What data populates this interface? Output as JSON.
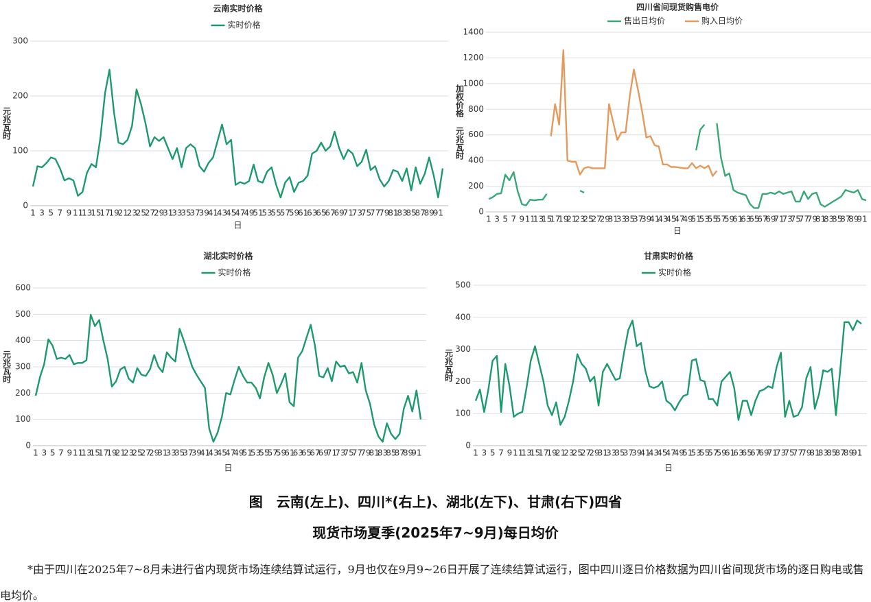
{
  "chart_data": [
    {
      "type": "line",
      "title": "云南实时价格",
      "xlabel": "日",
      "ylabel": "元兆瓦时",
      "grid": true,
      "legend": "top",
      "categories": [
        "1",
        null,
        "3",
        null,
        "5",
        null,
        "7",
        null,
        "9",
        null,
        "11",
        null,
        "13",
        null,
        "15",
        null,
        "17",
        null,
        "19",
        null,
        "21",
        null,
        "23",
        null,
        "25",
        null,
        "27",
        null,
        "29",
        null,
        "31",
        null,
        "33",
        null,
        "35",
        null,
        "37",
        null,
        "39",
        null,
        "41",
        null,
        "43",
        null,
        "45",
        null,
        "47",
        null,
        "49",
        null,
        "51",
        null,
        "53",
        null,
        "55",
        null,
        "57",
        null,
        "59",
        null,
        "61",
        null,
        "63",
        null,
        "65",
        null,
        "67",
        null,
        "69",
        null,
        "71",
        null,
        "73",
        null,
        "75",
        null,
        "77",
        null,
        "79",
        null,
        "81",
        null,
        "83",
        null,
        "85",
        null,
        "87",
        null,
        "89",
        null,
        "91",
        null
      ],
      "ylim": [
        0,
        300
      ],
      "yticks": [
        0,
        100,
        200,
        300
      ],
      "series": [
        {
          "name": "实时价格",
          "color": "#1d9a6c",
          "values": [
            35,
            72,
            70,
            78,
            88,
            85,
            68,
            46,
            50,
            46,
            18,
            25,
            60,
            76,
            70,
            125,
            205,
            248,
            170,
            115,
            112,
            120,
            145,
            212,
            185,
            150,
            108,
            125,
            118,
            125,
            105,
            85,
            105,
            70,
            105,
            112,
            105,
            72,
            62,
            78,
            88,
            118,
            148,
            112,
            120,
            38,
            43,
            40,
            45,
            75,
            45,
            42,
            62,
            70,
            38,
            15,
            42,
            52,
            25,
            42,
            45,
            55,
            95,
            100,
            115,
            100,
            108,
            135,
            105,
            85,
            102,
            95,
            72,
            80,
            102,
            65,
            72,
            48,
            35,
            45,
            65,
            62,
            45,
            68,
            28,
            70,
            40,
            58,
            88,
            55,
            15,
            68
          ]
        }
      ]
    },
    {
      "type": "line",
      "title": "四川省间现货购售电价",
      "xlabel": "日",
      "ylabel": "加权价格 元兆瓦时",
      "grid": true,
      "legend": "top",
      "categories": [
        "1",
        null,
        "3",
        null,
        "5",
        null,
        "7",
        null,
        "9",
        null,
        "11",
        null,
        "13",
        null,
        "15",
        null,
        "17",
        null,
        "19",
        null,
        "21",
        null,
        "23",
        null,
        "25",
        null,
        "27",
        null,
        "29",
        null,
        "31",
        null,
        "33",
        null,
        "35",
        null,
        "37",
        null,
        "39",
        null,
        "41",
        null,
        "43",
        null,
        "45",
        null,
        "47",
        null,
        "49",
        null,
        "51",
        null,
        "53",
        null,
        "55",
        null,
        "57",
        null,
        "59",
        null,
        "61",
        null,
        "63",
        null,
        "65",
        null,
        "67",
        null,
        "69",
        null,
        "71",
        null,
        "73",
        null,
        "75",
        null,
        "77",
        null,
        "79",
        null,
        "81",
        null,
        "83",
        null,
        "85",
        null,
        "87",
        null,
        "89",
        null,
        "91",
        null
      ],
      "ylim": [
        0,
        1400
      ],
      "yticks": [
        0,
        200,
        400,
        600,
        800,
        1000,
        1200,
        1400
      ],
      "series": [
        {
          "name": "售出日均价",
          "color": "#3aa876",
          "values": [
            100,
            115,
            140,
            145,
            290,
            245,
            310,
            160,
            60,
            50,
            95,
            90,
            95,
            95,
            140,
            null,
            null,
            null,
            null,
            null,
            null,
            null,
            165,
            150,
            null,
            null,
            null,
            null,
            null,
            null,
            null,
            null,
            null,
            null,
            null,
            null,
            null,
            null,
            null,
            null,
            null,
            null,
            null,
            null,
            null,
            null,
            null,
            null,
            null,
            null,
            480,
            640,
            680,
            null,
            null,
            690,
            420,
            280,
            300,
            170,
            150,
            140,
            130,
            60,
            30,
            30,
            140,
            140,
            150,
            140,
            160,
            140,
            150,
            160,
            80,
            80,
            160,
            100,
            140,
            150,
            60,
            40,
            60,
            80,
            100,
            120,
            170,
            160,
            150,
            170,
            100,
            90
          ]
        },
        {
          "name": "购入日均价",
          "color": "#e49a5c",
          "values": [
            null,
            null,
            null,
            null,
            null,
            null,
            null,
            null,
            null,
            null,
            null,
            null,
            null,
            null,
            null,
            590,
            840,
            680,
            1260,
            400,
            390,
            390,
            290,
            340,
            350,
            340,
            340,
            340,
            340,
            840,
            700,
            560,
            620,
            620,
            900,
            1110,
            950,
            780,
            580,
            590,
            520,
            510,
            370,
            370,
            350,
            350,
            345,
            340,
            340,
            380,
            340,
            360,
            340,
            360,
            280,
            320,
            null,
            null,
            null,
            null,
            null,
            null,
            null,
            null,
            null,
            null,
            null,
            null,
            null,
            null,
            null,
            null,
            null,
            null,
            null,
            null,
            null,
            null,
            null,
            null,
            null,
            null,
            null,
            null,
            null,
            null,
            null,
            null,
            null,
            null,
            null,
            null
          ]
        }
      ]
    },
    {
      "type": "line",
      "title": "湖北实时价格",
      "xlabel": "日",
      "ylabel": "元兆瓦时",
      "grid": true,
      "legend": "top",
      "categories": [
        "1",
        null,
        "3",
        null,
        "5",
        null,
        "7",
        null,
        "9",
        null,
        "11",
        null,
        "13",
        null,
        "15",
        null,
        "17",
        null,
        "19",
        null,
        "21",
        null,
        "23",
        null,
        "25",
        null,
        "27",
        null,
        "29",
        null,
        "31",
        null,
        "33",
        null,
        "35",
        null,
        "37",
        null,
        "39",
        null,
        "41",
        null,
        "43",
        null,
        "45",
        null,
        "47",
        null,
        "49",
        null,
        "51",
        null,
        "53",
        null,
        "55",
        null,
        "57",
        null,
        "59",
        null,
        "61",
        null,
        "63",
        null,
        "65",
        null,
        "67",
        null,
        "69",
        null,
        "71",
        null,
        "73",
        null,
        "75",
        null,
        "77",
        null,
        "79",
        null,
        "81",
        null,
        "83",
        null,
        "85",
        null,
        "87",
        null,
        "89",
        null,
        "91",
        null
      ],
      "ylim": [
        0,
        600
      ],
      "yticks": [
        0,
        100,
        200,
        300,
        400,
        500,
        600
      ],
      "series": [
        {
          "name": "实时价格",
          "color": "#1d9a6c",
          "values": [
            190,
            260,
            310,
            405,
            380,
            330,
            335,
            330,
            345,
            310,
            315,
            315,
            325,
            498,
            455,
            478,
            400,
            330,
            225,
            245,
            290,
            300,
            255,
            240,
            295,
            270,
            265,
            290,
            345,
            300,
            280,
            355,
            335,
            320,
            445,
            400,
            350,
            300,
            270,
            245,
            220,
            65,
            15,
            50,
            110,
            200,
            195,
            250,
            300,
            265,
            240,
            240,
            220,
            180,
            260,
            315,
            270,
            200,
            235,
            275,
            165,
            150,
            335,
            360,
            410,
            460,
            380,
            265,
            260,
            295,
            245,
            320,
            300,
            305,
            275,
            280,
            240,
            315,
            210,
            160,
            80,
            35,
            15,
            85,
            45,
            25,
            45,
            140,
            190,
            130,
            210,
            100
          ]
        }
      ]
    },
    {
      "type": "line",
      "title": "甘肃实时价格",
      "xlabel": "日",
      "ylabel": "元兆瓦时",
      "grid": true,
      "legend": "top",
      "categories": [
        "1",
        null,
        "3",
        null,
        "5",
        null,
        "7",
        null,
        "9",
        null,
        "11",
        null,
        "13",
        null,
        "15",
        null,
        "17",
        null,
        "19",
        null,
        "21",
        null,
        "23",
        null,
        "25",
        null,
        "27",
        null,
        "29",
        null,
        "31",
        null,
        "33",
        null,
        "35",
        null,
        "37",
        null,
        "39",
        null,
        "41",
        null,
        "43",
        null,
        "45",
        null,
        "47",
        null,
        "49",
        null,
        "51",
        null,
        "53",
        null,
        "55",
        null,
        "57",
        null,
        "59",
        null,
        "61",
        null,
        "63",
        null,
        "65",
        null,
        "67",
        null,
        "69",
        null,
        "71",
        null,
        "73",
        null,
        "75",
        null,
        "77",
        null,
        "79",
        null,
        "81",
        null,
        "83",
        null,
        "85",
        null,
        "87",
        null,
        "89",
        null,
        "91",
        null
      ],
      "ylim": [
        0,
        500
      ],
      "yticks": [
        0,
        100,
        200,
        300,
        400,
        500
      ],
      "series": [
        {
          "name": "实时价格",
          "color": "#1d9a6c",
          "values": [
            140,
            175,
            105,
            175,
            265,
            280,
            105,
            255,
            185,
            90,
            100,
            105,
            180,
            265,
            310,
            255,
            200,
            125,
            95,
            135,
            65,
            90,
            140,
            200,
            285,
            255,
            240,
            200,
            215,
            125,
            230,
            255,
            230,
            205,
            210,
            290,
            360,
            390,
            310,
            320,
            235,
            185,
            180,
            185,
            200,
            140,
            130,
            110,
            135,
            155,
            160,
            265,
            270,
            205,
            200,
            145,
            145,
            125,
            200,
            215,
            230,
            180,
            80,
            140,
            140,
            95,
            140,
            170,
            175,
            185,
            180,
            245,
            290,
            90,
            140,
            90,
            95,
            120,
            210,
            245,
            115,
            160,
            235,
            230,
            240,
            95,
            235,
            385,
            385,
            360,
            390,
            380
          ]
        }
      ]
    }
  ],
  "caption": [
    "图　云南(左上)、四川*(右上)、湖北(左下)、甘肃(右下)四省",
    "现货市场夏季(2025年7~9月)每日均价"
  ],
  "footnote": "*由于四川在2025年7~8月未进行省内现货市场连续结算试运行，9月也仅在9月9~26日开展了连续结算试运行，图中四川逐日价格数据为四川省间现货市场的逐日购电或售电均价。"
}
